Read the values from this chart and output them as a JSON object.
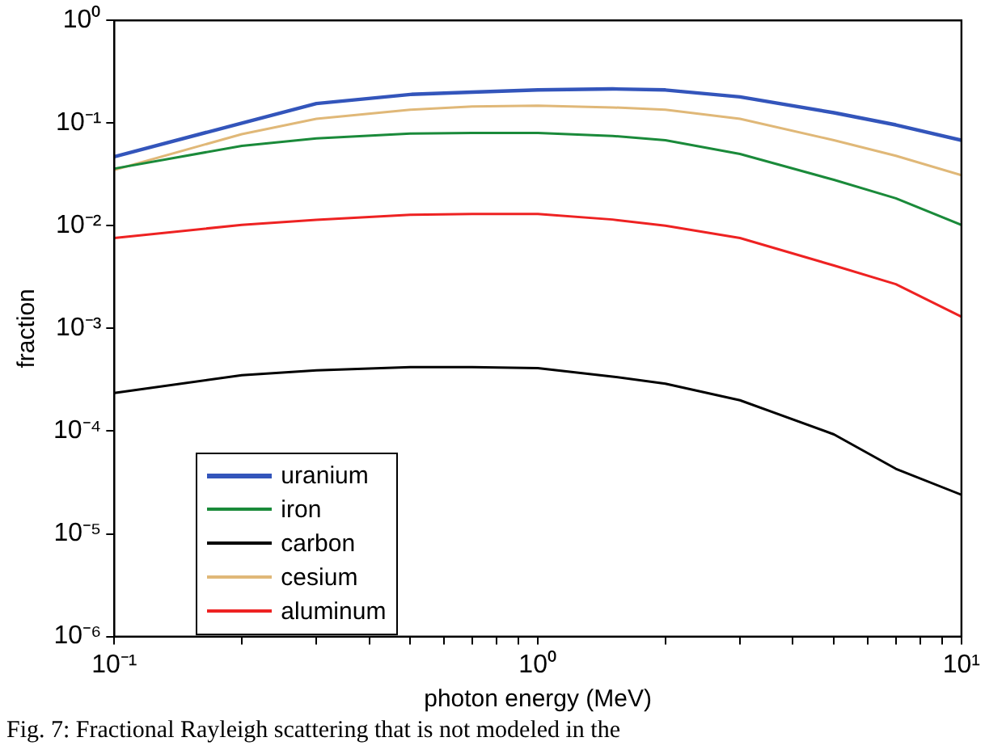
{
  "chart_data": {
    "type": "line",
    "xlabel": "photon energy (MeV)",
    "ylabel": "fraction",
    "x": [
      0.1,
      0.2,
      0.3,
      0.5,
      0.7,
      1,
      1.5,
      2,
      3,
      5,
      7,
      10
    ],
    "series": [
      {
        "name": "uranium",
        "color": "#3355bb",
        "values": [
          0.047,
          0.1,
          0.155,
          0.19,
          0.2,
          0.21,
          0.215,
          0.21,
          0.18,
          0.126,
          0.096,
          0.068
        ]
      },
      {
        "name": "iron",
        "color": "#1a8a3a",
        "values": [
          0.036,
          0.06,
          0.071,
          0.079,
          0.08,
          0.08,
          0.075,
          0.068,
          0.05,
          0.028,
          0.0185,
          0.0102
        ]
      },
      {
        "name": "carbon",
        "color": "#000000",
        "values": [
          0.000235,
          0.00035,
          0.00039,
          0.00042,
          0.00042,
          0.00041,
          0.00034,
          0.00029,
          0.0002,
          9.3e-05,
          4.3e-05,
          2.4e-05
        ]
      },
      {
        "name": "cesium",
        "color": "#e0b878",
        "values": [
          0.035,
          0.078,
          0.11,
          0.135,
          0.145,
          0.148,
          0.142,
          0.135,
          0.11,
          0.068,
          0.048,
          0.031
        ]
      },
      {
        "name": "aluminum",
        "color": "#ee2222",
        "values": [
          0.0076,
          0.0102,
          0.0114,
          0.0128,
          0.013,
          0.013,
          0.0115,
          0.01,
          0.0076,
          0.0041,
          0.0027,
          0.0013
        ]
      }
    ],
    "log": "xy",
    "xlim": [
      0.1,
      10
    ],
    "xticks": [
      {
        "value": 0.1,
        "label": "10⁻¹"
      },
      {
        "value": 0.2,
        "label": null
      },
      {
        "value": 0.3,
        "label": null
      },
      {
        "value": 0.4,
        "label": null
      },
      {
        "value": 0.5,
        "label": null
      },
      {
        "value": 0.6,
        "label": null
      },
      {
        "value": 0.7,
        "label": null
      },
      {
        "value": 0.8,
        "label": null
      },
      {
        "value": 0.9,
        "label": null
      },
      {
        "value": 1,
        "label": "10⁰"
      },
      {
        "value": 2,
        "label": null
      },
      {
        "value": 3,
        "label": null
      },
      {
        "value": 4,
        "label": null
      },
      {
        "value": 5,
        "label": null
      },
      {
        "value": 6,
        "label": null
      },
      {
        "value": 7,
        "label": null
      },
      {
        "value": 8,
        "label": null
      },
      {
        "value": 9,
        "label": null
      },
      {
        "value": 10,
        "label": "10¹"
      }
    ],
    "ylim": [
      1e-06,
      1
    ],
    "yticks": [
      {
        "value": 1e-06,
        "label": "10⁻⁶"
      },
      {
        "value": 1e-05,
        "label": "10⁻⁵"
      },
      {
        "value": 0.0001,
        "label": "10⁻⁴"
      },
      {
        "value": 0.001,
        "label": "10⁻³"
      },
      {
        "value": 0.01,
        "label": "10⁻²"
      },
      {
        "value": 0.1,
        "label": "10⁻¹"
      },
      {
        "value": 1,
        "label": "10⁰"
      }
    ],
    "grid": false,
    "legend": "bottom left",
    "marker": "none",
    "line_style": "solid",
    "annotations": [
      "Fig. 7: Fractional Rayleigh scattering that is not modeled in the"
    ]
  }
}
